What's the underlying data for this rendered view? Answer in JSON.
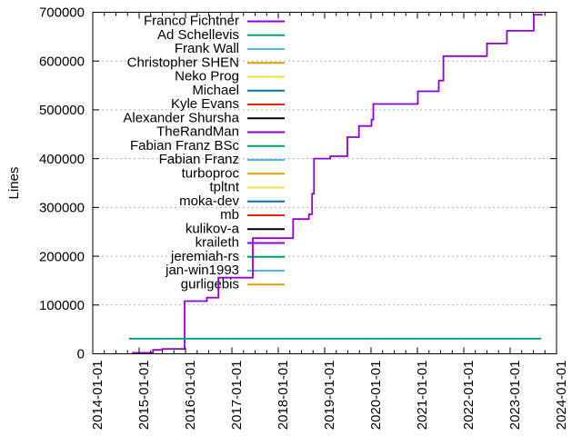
{
  "chart_data": {
    "type": "line",
    "title": "",
    "ylabel": "Lines",
    "xlabel": "",
    "style": "gnuplot-steps",
    "grid": "horizontal-dotted",
    "legend_position": "top-left-inside",
    "background": "#ffffff",
    "border_color": "#000000",
    "grid_color": "#b4b4b4",
    "x_range_years": [
      2014,
      2024
    ],
    "x_tick_labels": [
      "2014-01-01",
      "2015-01-01",
      "2016-01-01",
      "2017-01-01",
      "2018-01-01",
      "2019-01-01",
      "2020-01-01",
      "2021-01-01",
      "2022-01-01",
      "2023-01-01",
      "2024-01-01"
    ],
    "x_minor_ticks_per_year": 4,
    "ylim": [
      0,
      700000
    ],
    "y_tick_labels": [
      "0",
      "100000",
      "200000",
      "300000",
      "400000",
      "500000",
      "600000",
      "700000"
    ],
    "palette": [
      "#9400d3",
      "#009e73",
      "#56b4e9",
      "#e69f00",
      "#f0e442",
      "#0072b2",
      "#e51e10",
      "#000000"
    ],
    "series": [
      {
        "name": "Franco Fichtner",
        "color": "#9400d3",
        "points_year_lines": [
          [
            2014.85,
            2000
          ],
          [
            2015.3,
            8000
          ],
          [
            2015.5,
            10000
          ],
          [
            2015.98,
            108000
          ],
          [
            2016.46,
            115000
          ],
          [
            2016.71,
            156000
          ],
          [
            2017.45,
            237000
          ],
          [
            2018.32,
            276000
          ],
          [
            2018.66,
            286000
          ],
          [
            2018.73,
            328000
          ],
          [
            2018.77,
            400000
          ],
          [
            2019.12,
            405000
          ],
          [
            2019.49,
            444000
          ],
          [
            2019.74,
            467000
          ],
          [
            2020.01,
            480000
          ],
          [
            2020.05,
            512000
          ],
          [
            2021.01,
            538000
          ],
          [
            2021.46,
            560000
          ],
          [
            2021.56,
            610000
          ],
          [
            2022.5,
            636000
          ],
          [
            2022.93,
            662000
          ],
          [
            2023.51,
            695000
          ],
          [
            2023.7,
            695000
          ]
        ]
      },
      {
        "name": "Ad Schellevis",
        "color": "#009e73",
        "points_year_lines": [
          [
            2014.78,
            31000
          ],
          [
            2023.67,
            31000
          ]
        ]
      },
      {
        "name": "Frank Wall",
        "color": "#56b4e9",
        "points_year_lines": []
      },
      {
        "name": "Christopher SHEN",
        "color": "#e69f00",
        "points_year_lines": []
      },
      {
        "name": "Neko Prog",
        "color": "#f0e442",
        "points_year_lines": []
      },
      {
        "name": "Michael",
        "color": "#0072b2",
        "points_year_lines": []
      },
      {
        "name": "Kyle Evans",
        "color": "#e51e10",
        "points_year_lines": []
      },
      {
        "name": "Alexander Shursha",
        "color": "#000000",
        "points_year_lines": []
      },
      {
        "name": "TheRandMan",
        "color": "#9400d3",
        "points_year_lines": []
      },
      {
        "name": "Fabian Franz BSc",
        "color": "#009e73",
        "points_year_lines": []
      },
      {
        "name": "Fabian Franz",
        "color": "#56b4e9",
        "points_year_lines": []
      },
      {
        "name": "turboproc",
        "color": "#e69f00",
        "points_year_lines": []
      },
      {
        "name": "tpltnt",
        "color": "#f0e442",
        "points_year_lines": []
      },
      {
        "name": "moka-dev",
        "color": "#0072b2",
        "points_year_lines": []
      },
      {
        "name": "mb",
        "color": "#e51e10",
        "points_year_lines": []
      },
      {
        "name": "kulikov-a",
        "color": "#000000",
        "points_year_lines": []
      },
      {
        "name": "kraileth",
        "color": "#9400d3",
        "points_year_lines": []
      },
      {
        "name": "jeremiah-rs",
        "color": "#009e73",
        "points_year_lines": []
      },
      {
        "name": "jan-win1993",
        "color": "#56b4e9",
        "points_year_lines": []
      },
      {
        "name": "gurligebis",
        "color": "#e69f00",
        "points_year_lines": []
      }
    ]
  }
}
